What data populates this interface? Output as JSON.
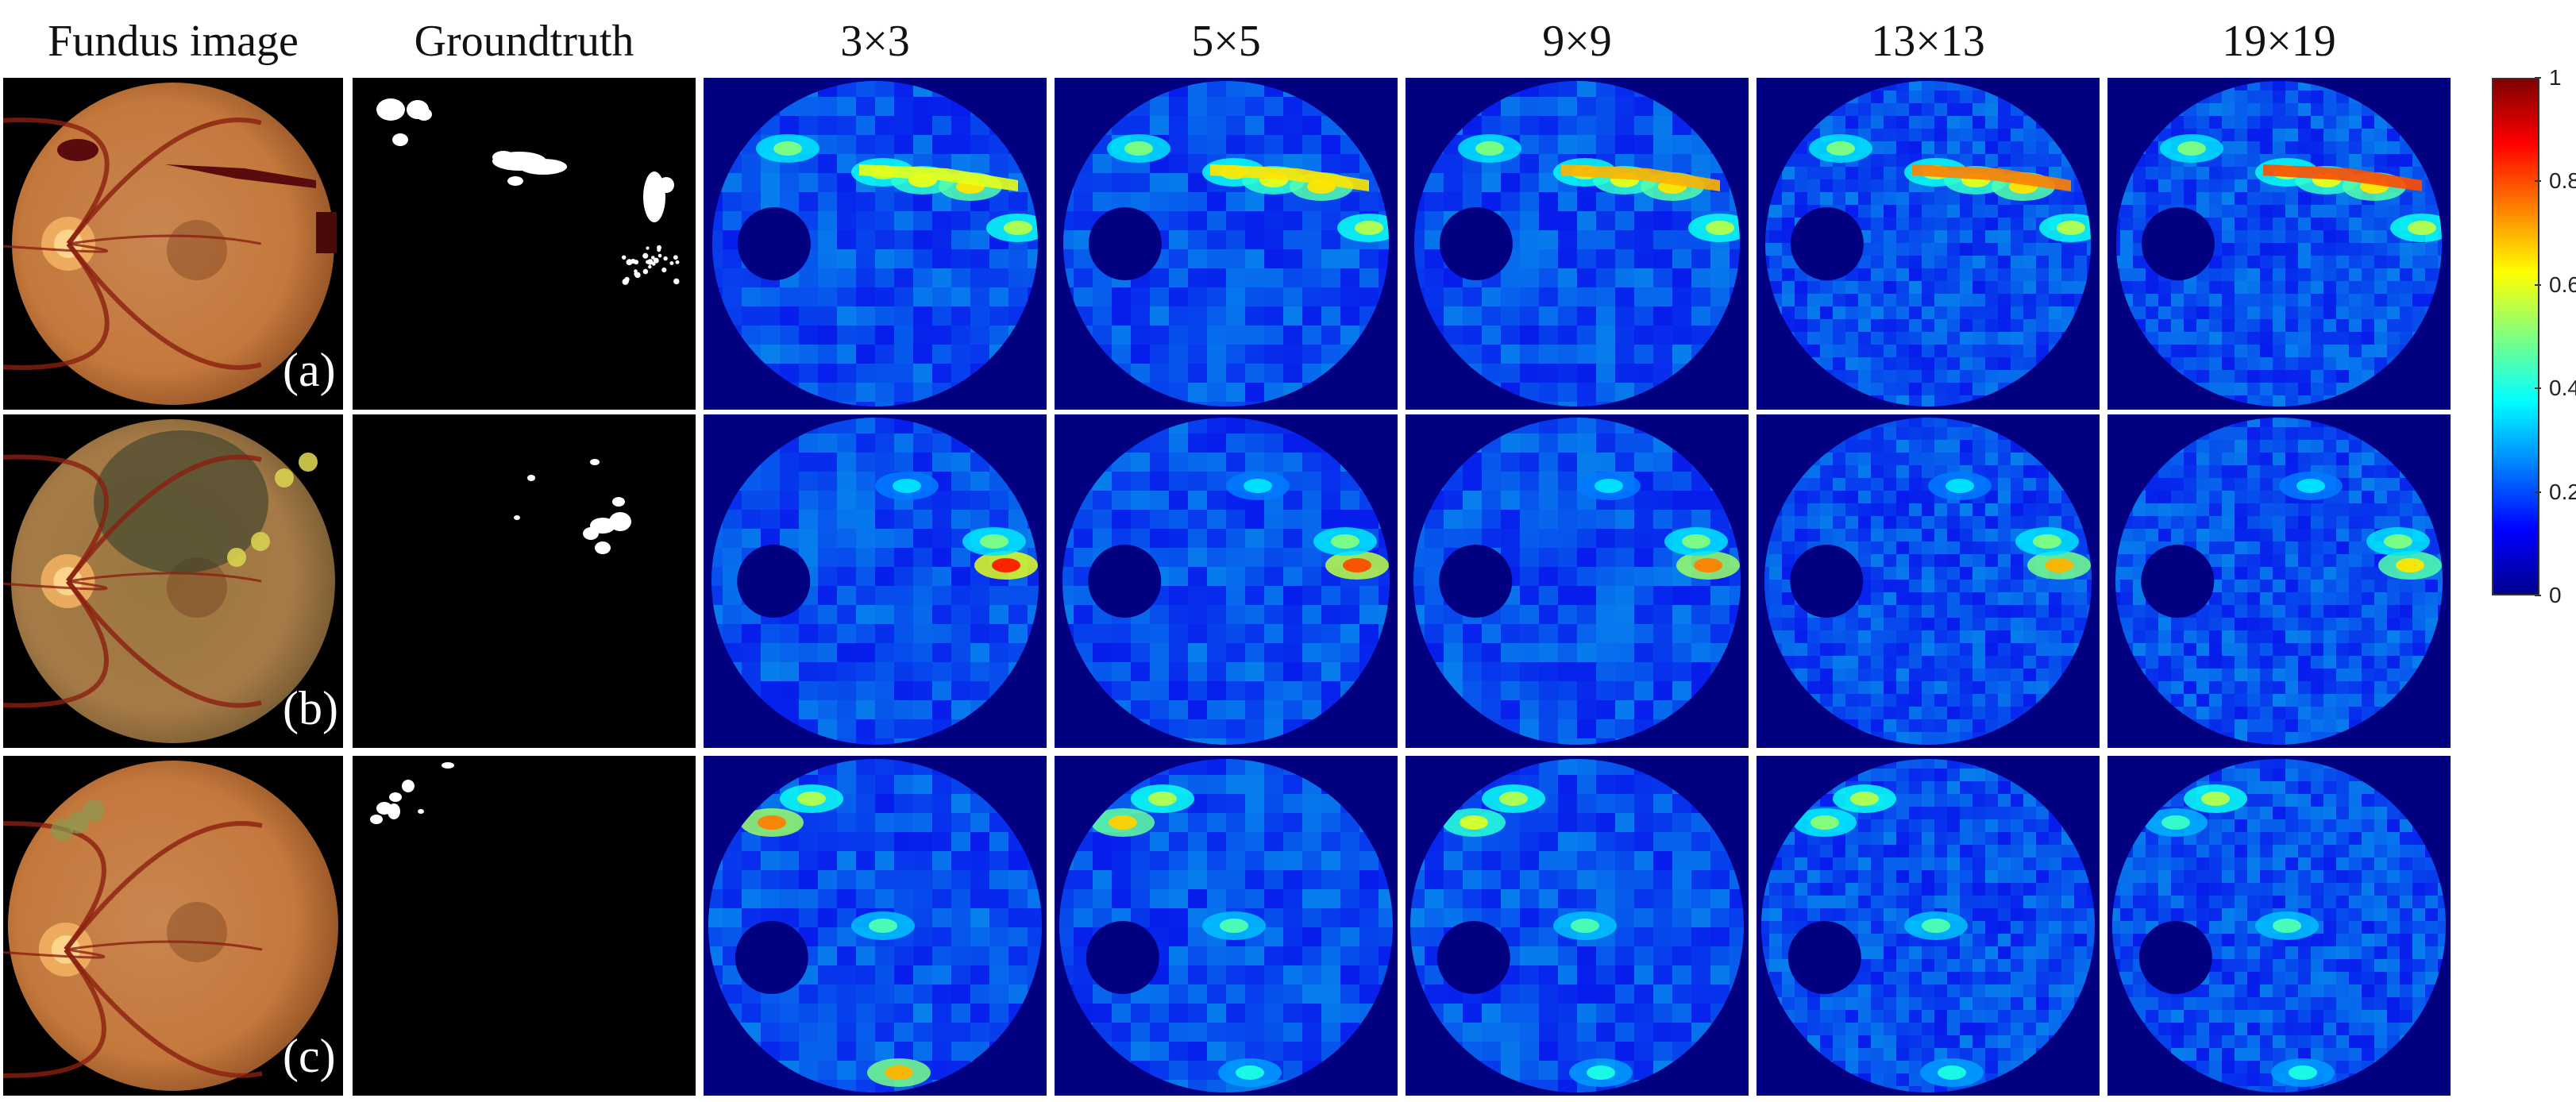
{
  "figure": {
    "column_headers": [
      "Fundus image",
      "Groundtruth",
      "3×3",
      "5×5",
      "9×9",
      "13×13",
      "19×19"
    ],
    "row_labels": [
      "(a)",
      "(b)",
      "(c)"
    ],
    "colorbar": {
      "ticks": [
        "1",
        "0.8",
        "0.6",
        "0.4",
        "0.2",
        "0"
      ],
      "tick_values": [
        1,
        0.8,
        0.6,
        0.4,
        0.2,
        0
      ],
      "range": [
        0,
        1
      ],
      "colormap": "jet"
    },
    "colors": {
      "heatmap_background": "#000080",
      "heatmap_base": "#1040d8",
      "fundus_orange": "#c97a3a",
      "mask_background": "#000000",
      "mask_lesion": "#ffffff"
    }
  }
}
